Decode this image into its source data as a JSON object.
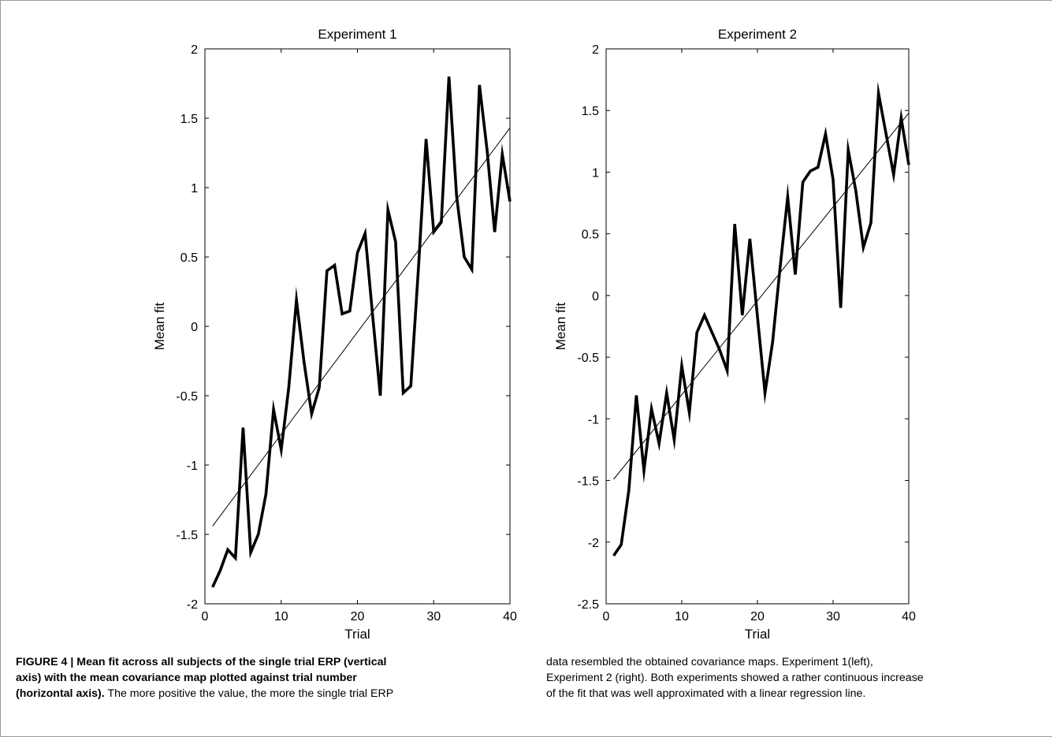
{
  "chart_data": [
    {
      "type": "line",
      "title": "Experiment 1",
      "xlabel": "Trial",
      "ylabel": "Mean fit",
      "xlim": [
        0,
        40
      ],
      "ylim": [
        -2,
        2
      ],
      "xticks": [
        "0",
        "10",
        "20",
        "30",
        "40"
      ],
      "yticks": [
        "-2",
        "-1.5",
        "-1",
        "-0.5",
        "0",
        "0.5",
        "1",
        "1.5",
        "2"
      ],
      "grid": false,
      "legend": "none",
      "series": [
        {
          "style": "thick",
          "x": [
            1,
            2,
            3,
            4,
            5,
            6,
            7,
            8,
            9,
            10,
            11,
            12,
            13,
            14,
            15,
            16,
            17,
            18,
            19,
            20,
            21,
            22,
            23,
            24,
            25,
            26,
            27,
            28,
            29,
            30,
            31,
            32,
            33,
            34,
            35,
            36,
            37,
            38,
            39,
            40
          ],
          "y": [
            -1.88,
            -1.76,
            -1.61,
            -1.67,
            -0.73,
            -1.63,
            -1.5,
            -1.21,
            -0.6,
            -0.89,
            -0.44,
            0.19,
            -0.26,
            -0.63,
            -0.44,
            0.4,
            0.44,
            0.09,
            0.11,
            0.53,
            0.67,
            0.07,
            -0.5,
            0.84,
            0.61,
            -0.48,
            -0.43,
            0.42,
            1.35,
            0.68,
            0.75,
            1.8,
            0.94,
            0.5,
            0.41,
            1.74,
            1.27,
            0.68,
            1.24,
            0.9
          ]
        },
        {
          "style": "regression",
          "x": [
            1,
            40
          ],
          "y": [
            -1.44,
            1.43
          ]
        }
      ]
    },
    {
      "type": "line",
      "title": "Experiment 2",
      "xlabel": "Trial",
      "ylabel": "Mean fit",
      "xlim": [
        0,
        40
      ],
      "ylim": [
        -2.5,
        2
      ],
      "xticks": [
        "0",
        "10",
        "20",
        "30",
        "40"
      ],
      "yticks": [
        "-2.5",
        "-2",
        "-1.5",
        "-1",
        "-0.5",
        "0",
        "0.5",
        "1",
        "1.5",
        "2"
      ],
      "grid": false,
      "legend": "none",
      "series": [
        {
          "style": "thick",
          "x": [
            1,
            2,
            3,
            4,
            5,
            6,
            7,
            8,
            9,
            10,
            11,
            12,
            13,
            14,
            15,
            16,
            17,
            18,
            19,
            20,
            21,
            22,
            23,
            24,
            25,
            26,
            27,
            28,
            29,
            30,
            31,
            32,
            33,
            34,
            35,
            36,
            37,
            38,
            39,
            40
          ],
          "y": [
            -2.11,
            -2.02,
            -1.58,
            -0.81,
            -1.42,
            -0.92,
            -1.2,
            -0.79,
            -1.17,
            -0.57,
            -0.95,
            -0.3,
            -0.16,
            -0.3,
            -0.44,
            -0.61,
            0.58,
            -0.16,
            0.46,
            -0.17,
            -0.79,
            -0.38,
            0.23,
            0.8,
            0.17,
            0.92,
            1.01,
            1.04,
            1.31,
            0.94,
            -0.1,
            1.18,
            0.85,
            0.39,
            0.59,
            1.64,
            1.31,
            0.98,
            1.44,
            1.06
          ]
        },
        {
          "style": "regression",
          "x": [
            1,
            40
          ],
          "y": [
            -1.49,
            1.48
          ]
        }
      ]
    }
  ],
  "caption": {
    "left_lines": [
      [
        {
          "bold": true,
          "text": "FIGURE 4 | Mean fit across all subjects of the single trial ERP (vertical"
        }
      ],
      [
        {
          "bold": true,
          "text": "axis) with the mean covariance map plotted against trial number"
        }
      ],
      [
        {
          "bold": true,
          "text": "(horizontal axis)."
        },
        {
          "bold": false,
          "text": " The more positive the value, the more the single trial ERP"
        }
      ]
    ],
    "right_lines": [
      [
        {
          "bold": false,
          "text": "data resembled the obtained covariance maps. Experiment 1(left),"
        }
      ],
      [
        {
          "bold": false,
          "text": "Experiment 2 (right). Both experiments showed a rather continuous increase"
        }
      ],
      [
        {
          "bold": false,
          "text": "of the fit that was well approximated with a linear regression line."
        }
      ]
    ]
  }
}
